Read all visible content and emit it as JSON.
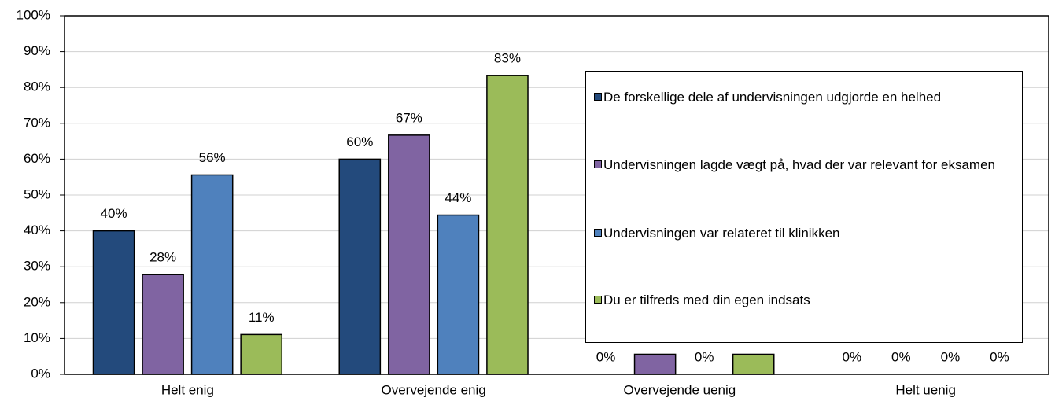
{
  "chart_data": {
    "type": "bar",
    "categories": [
      "Helt enig",
      "Overvejende enig",
      "Overvejende uenig",
      "Helt uenig"
    ],
    "series": [
      {
        "name": "De forskellige dele af undervisningen udgjorde en helhed",
        "color": "#234a7c",
        "values": [
          40,
          60,
          0,
          0
        ],
        "value_labels": [
          "40%",
          "60%",
          "0%",
          "0%"
        ]
      },
      {
        "name": "Undervisningen lagde vægt på, hvad der var relevant for eksamen",
        "color": "#8064a2",
        "values": [
          27.8,
          66.7,
          5.6,
          0
        ],
        "value_labels": [
          "28%",
          "67%",
          null,
          "0%"
        ]
      },
      {
        "name": "Undervisningen var relateret til klinikken",
        "color": "#4f81bd",
        "values": [
          55.6,
          44.4,
          0,
          0
        ],
        "value_labels": [
          "56%",
          "44%",
          "0%",
          "0%"
        ]
      },
      {
        "name": "Du er tilfreds med din egen indsats",
        "color": "#9bbb59",
        "values": [
          11.1,
          83.3,
          5.6,
          0
        ],
        "value_labels": [
          "11%",
          "83%",
          null,
          "0%"
        ]
      }
    ],
    "ylim": [
      0,
      100
    ],
    "yticks": [
      {
        "value": 0,
        "label": "0%"
      },
      {
        "value": 10,
        "label": "10%"
      },
      {
        "value": 20,
        "label": "20%"
      },
      {
        "value": 30,
        "label": "30%"
      },
      {
        "value": 40,
        "label": "40%"
      },
      {
        "value": 50,
        "label": "50%"
      },
      {
        "value": 60,
        "label": "60%"
      },
      {
        "value": 70,
        "label": "70%"
      },
      {
        "value": 80,
        "label": "80%"
      },
      {
        "value": 90,
        "label": "90%"
      },
      {
        "value": 100,
        "label": "100%"
      }
    ],
    "grid": true,
    "legend": "right"
  }
}
